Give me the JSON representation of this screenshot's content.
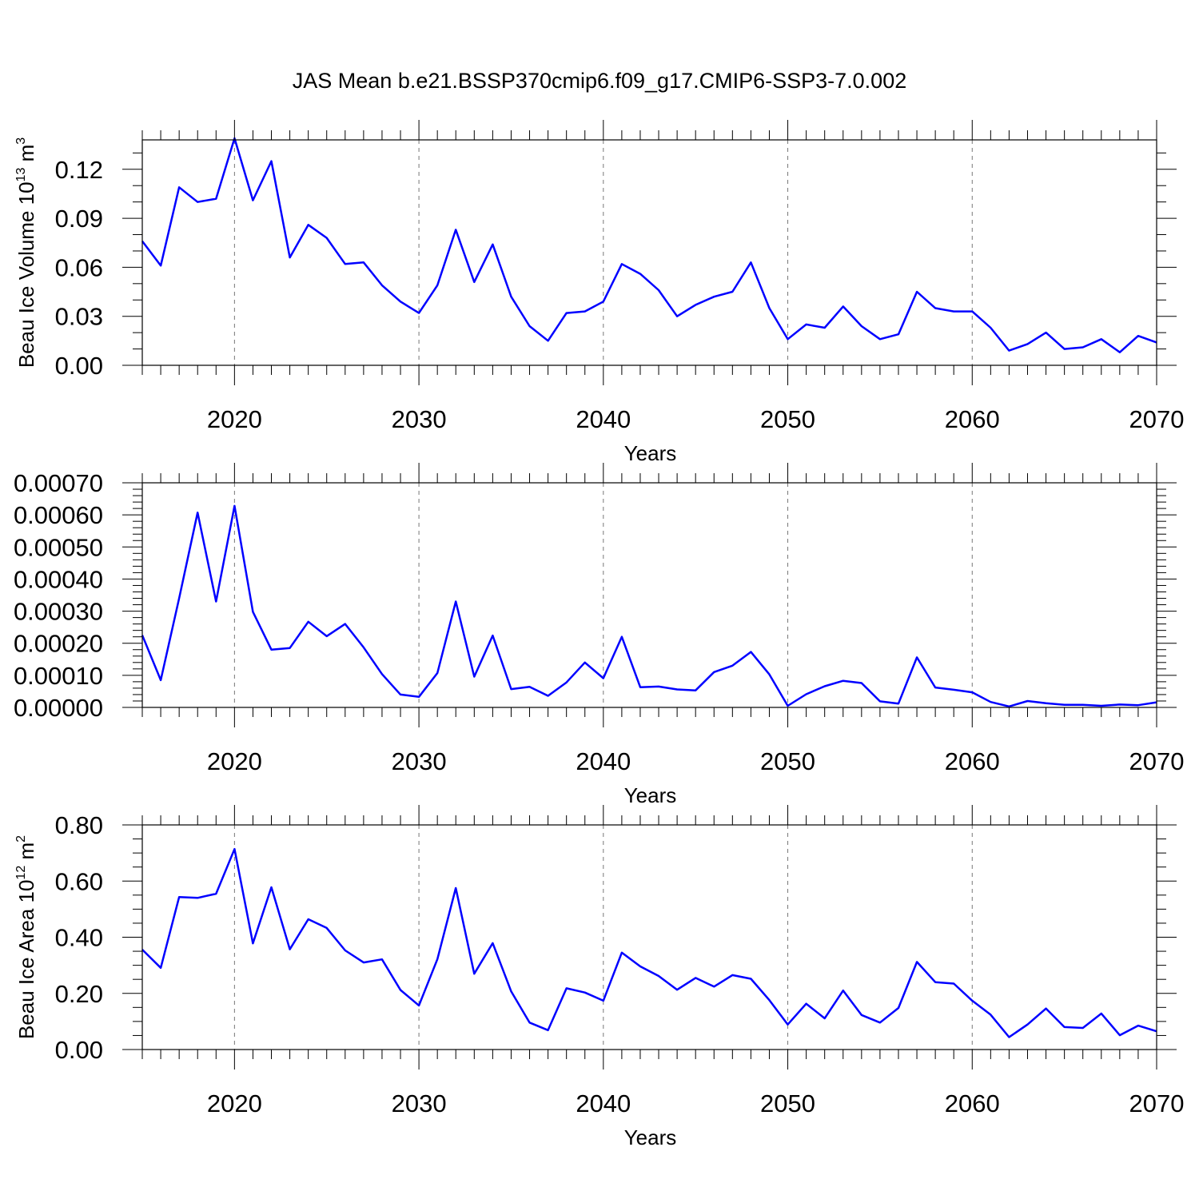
{
  "figure": {
    "title": "JAS Mean b.e21.BSSP370cmip6.f09_g17.CMIP6-SSP3-7.0.002",
    "line_color": "#0000ff"
  },
  "chart_data": [
    {
      "type": "line",
      "ylabel": "Beau Ice Volume 10",
      "ylabel_sup": "13",
      "ylabel_unit": "m",
      "ylabel_unit_sup": "3",
      "xlabel": "Years",
      "xlim": [
        2015,
        2070
      ],
      "ylim": [
        0,
        0.138
      ],
      "x_ticks": [
        2020,
        2030,
        2040,
        2050,
        2060,
        2070
      ],
      "x_tick_labels": [
        "2020",
        "2030",
        "2040",
        "2050",
        "2060",
        "2070"
      ],
      "y_ticks": [
        0,
        0.03,
        0.06,
        0.09,
        0.12
      ],
      "y_tick_labels": [
        "0.00",
        "0.03",
        "0.06",
        "0.09",
        "0.12"
      ],
      "y_minor_step": 0.01,
      "grid": "vertical dashed at major x ticks",
      "x": [
        2015,
        2016,
        2017,
        2018,
        2019,
        2020,
        2021,
        2022,
        2023,
        2024,
        2025,
        2026,
        2027,
        2028,
        2029,
        2030,
        2031,
        2032,
        2033,
        2034,
        2035,
        2036,
        2037,
        2038,
        2039,
        2040,
        2041,
        2042,
        2043,
        2044,
        2045,
        2046,
        2047,
        2048,
        2049,
        2050,
        2051,
        2052,
        2053,
        2054,
        2055,
        2056,
        2057,
        2058,
        2059,
        2060,
        2061,
        2062,
        2063,
        2064,
        2065,
        2066,
        2067,
        2068,
        2069,
        2070
      ],
      "series": [
        {
          "values": [
            0.076,
            0.061,
            0.109,
            0.1,
            0.102,
            0.139,
            0.101,
            0.125,
            0.066,
            0.086,
            0.078,
            0.062,
            0.063,
            0.049,
            0.039,
            0.032,
            0.049,
            0.083,
            0.051,
            0.074,
            0.042,
            0.024,
            0.015,
            0.032,
            0.033,
            0.039,
            0.062,
            0.056,
            0.046,
            0.03,
            0.037,
            0.042,
            0.045,
            0.063,
            0.035,
            0.016,
            0.025,
            0.023,
            0.036,
            0.024,
            0.016,
            0.019,
            0.045,
            0.035,
            0.033,
            0.033,
            0.023,
            0.009,
            0.013,
            0.02,
            0.01,
            0.011,
            0.016,
            0.008,
            0.018,
            0.014
          ]
        }
      ]
    },
    {
      "type": "line",
      "ylabel": "",
      "xlabel": "Years",
      "xlim": [
        2015,
        2070
      ],
      "ylim": [
        0,
        0.0007
      ],
      "x_ticks": [
        2020,
        2030,
        2040,
        2050,
        2060,
        2070
      ],
      "x_tick_labels": [
        "2020",
        "2030",
        "2040",
        "2050",
        "2060",
        "2070"
      ],
      "y_ticks": [
        0,
        0.0001,
        0.0002,
        0.0003,
        0.0004,
        0.0005,
        0.0006,
        0.0007
      ],
      "y_tick_labels": [
        "0.00000",
        "0.00010",
        "0.00020",
        "0.00030",
        "0.00040",
        "0.00050",
        "0.00060",
        "0.00070"
      ],
      "y_minor_step": 2e-05,
      "grid": "vertical dashed at major x ticks",
      "x": [
        2015,
        2016,
        2017,
        2018,
        2019,
        2020,
        2021,
        2022,
        2023,
        2024,
        2025,
        2026,
        2027,
        2028,
        2029,
        2030,
        2031,
        2032,
        2033,
        2034,
        2035,
        2036,
        2037,
        2038,
        2039,
        2040,
        2041,
        2042,
        2043,
        2044,
        2045,
        2046,
        2047,
        2048,
        2049,
        2050,
        2051,
        2052,
        2053,
        2054,
        2055,
        2056,
        2057,
        2058,
        2059,
        2060,
        2061,
        2062,
        2063,
        2064,
        2065,
        2066,
        2067,
        2068,
        2069,
        2070
      ],
      "series": [
        {
          "values": [
            0.000225,
            8.5e-05,
            0.00034,
            0.000607,
            0.00033,
            0.000628,
            0.000298,
            0.00018,
            0.000185,
            0.000267,
            0.000222,
            0.00026,
            0.000187,
            0.000104,
            4e-05,
            3.3e-05,
            0.000107,
            0.00033,
            9.6e-05,
            0.000224,
            5.7e-05,
            6.4e-05,
            3.6e-05,
            7.8e-05,
            0.00014,
            9.1e-05,
            0.00022,
            6.3e-05,
            6.5e-05,
            5.6e-05,
            5.3e-05,
            0.00011,
            0.00013,
            0.000173,
            0.000103,
            5e-06,
            4.1e-05,
            6.6e-05,
            8.3e-05,
            7.6e-05,
            1.9e-05,
            1.2e-05,
            0.000156,
            6.2e-05,
            5.5e-05,
            4.7e-05,
            1.7e-05,
            3e-06,
            2e-05,
            1.3e-05,
            8e-06,
            8e-06,
            5e-06,
            9e-06,
            7e-06,
            1.6e-05
          ]
        }
      ]
    },
    {
      "type": "line",
      "ylabel": "Beau Ice Area 10",
      "ylabel_sup": "12",
      "ylabel_unit": "m",
      "ylabel_unit_sup": "2",
      "xlabel": "Years",
      "xlim": [
        2015,
        2070
      ],
      "ylim": [
        0,
        0.8
      ],
      "x_ticks": [
        2020,
        2030,
        2040,
        2050,
        2060,
        2070
      ],
      "x_tick_labels": [
        "2020",
        "2030",
        "2040",
        "2050",
        "2060",
        "2070"
      ],
      "y_ticks": [
        0,
        0.2,
        0.4,
        0.6,
        0.8
      ],
      "y_tick_labels": [
        "0.00",
        "0.20",
        "0.40",
        "0.60",
        "0.80"
      ],
      "y_minor_step": 0.05,
      "grid": "vertical dashed at major x ticks",
      "x": [
        2015,
        2016,
        2017,
        2018,
        2019,
        2020,
        2021,
        2022,
        2023,
        2024,
        2025,
        2026,
        2027,
        2028,
        2029,
        2030,
        2031,
        2032,
        2033,
        2034,
        2035,
        2036,
        2037,
        2038,
        2039,
        2040,
        2041,
        2042,
        2043,
        2044,
        2045,
        2046,
        2047,
        2048,
        2049,
        2050,
        2051,
        2052,
        2053,
        2054,
        2055,
        2056,
        2057,
        2058,
        2059,
        2060,
        2061,
        2062,
        2063,
        2064,
        2065,
        2066,
        2067,
        2068,
        2069,
        2070
      ],
      "series": [
        {
          "values": [
            0.356,
            0.291,
            0.543,
            0.54,
            0.555,
            0.714,
            0.378,
            0.578,
            0.357,
            0.464,
            0.433,
            0.353,
            0.31,
            0.321,
            0.212,
            0.157,
            0.322,
            0.575,
            0.27,
            0.379,
            0.207,
            0.096,
            0.069,
            0.218,
            0.203,
            0.174,
            0.345,
            0.296,
            0.262,
            0.213,
            0.255,
            0.224,
            0.265,
            0.252,
            0.176,
            0.089,
            0.163,
            0.111,
            0.21,
            0.123,
            0.096,
            0.148,
            0.312,
            0.24,
            0.235,
            0.174,
            0.124,
            0.044,
            0.089,
            0.146,
            0.08,
            0.077,
            0.128,
            0.051,
            0.085,
            0.065
          ]
        }
      ]
    }
  ]
}
